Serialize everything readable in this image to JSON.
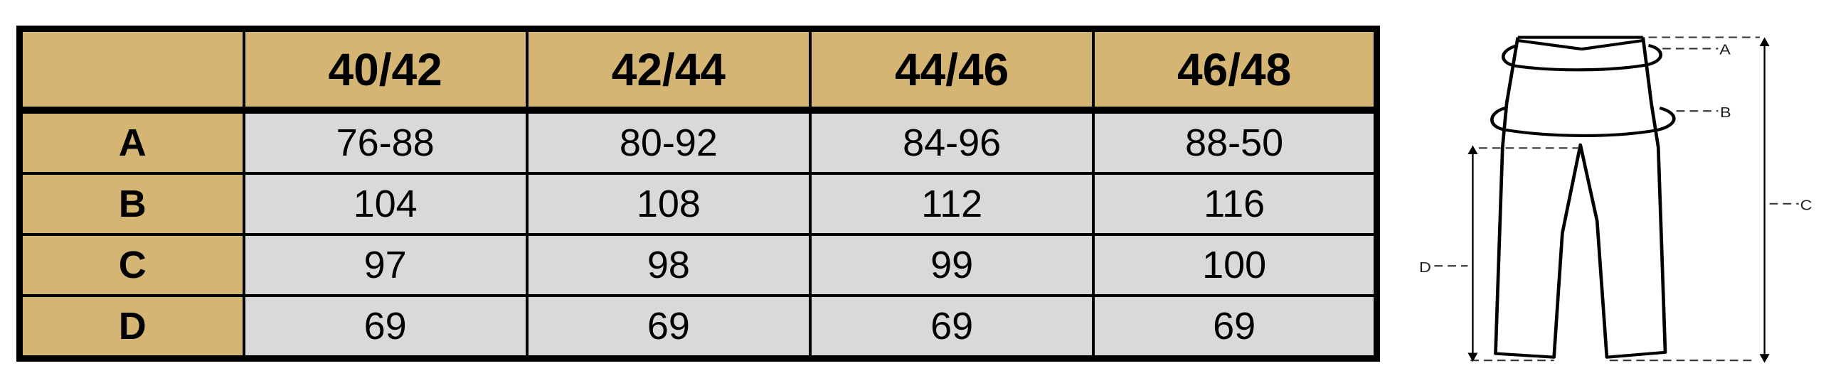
{
  "table": {
    "corner": "",
    "headers": [
      "40/42",
      "42/44",
      "44/46",
      "46/48"
    ],
    "rows": [
      {
        "label": "A",
        "values": [
          "76-88",
          "80-92",
          "84-96",
          "88-50"
        ]
      },
      {
        "label": "B",
        "values": [
          "104",
          "108",
          "112",
          "116"
        ]
      },
      {
        "label": "C",
        "values": [
          "97",
          "98",
          "99",
          "100"
        ]
      },
      {
        "label": "D",
        "values": [
          "69",
          "69",
          "69",
          "69"
        ]
      }
    ]
  },
  "diagram": {
    "labels": {
      "a": "A",
      "b": "B",
      "c": "C",
      "d": "D"
    }
  },
  "colors": {
    "header_bg": "#D4B574",
    "cell_bg": "#D9D9D9",
    "border": "#000000"
  }
}
